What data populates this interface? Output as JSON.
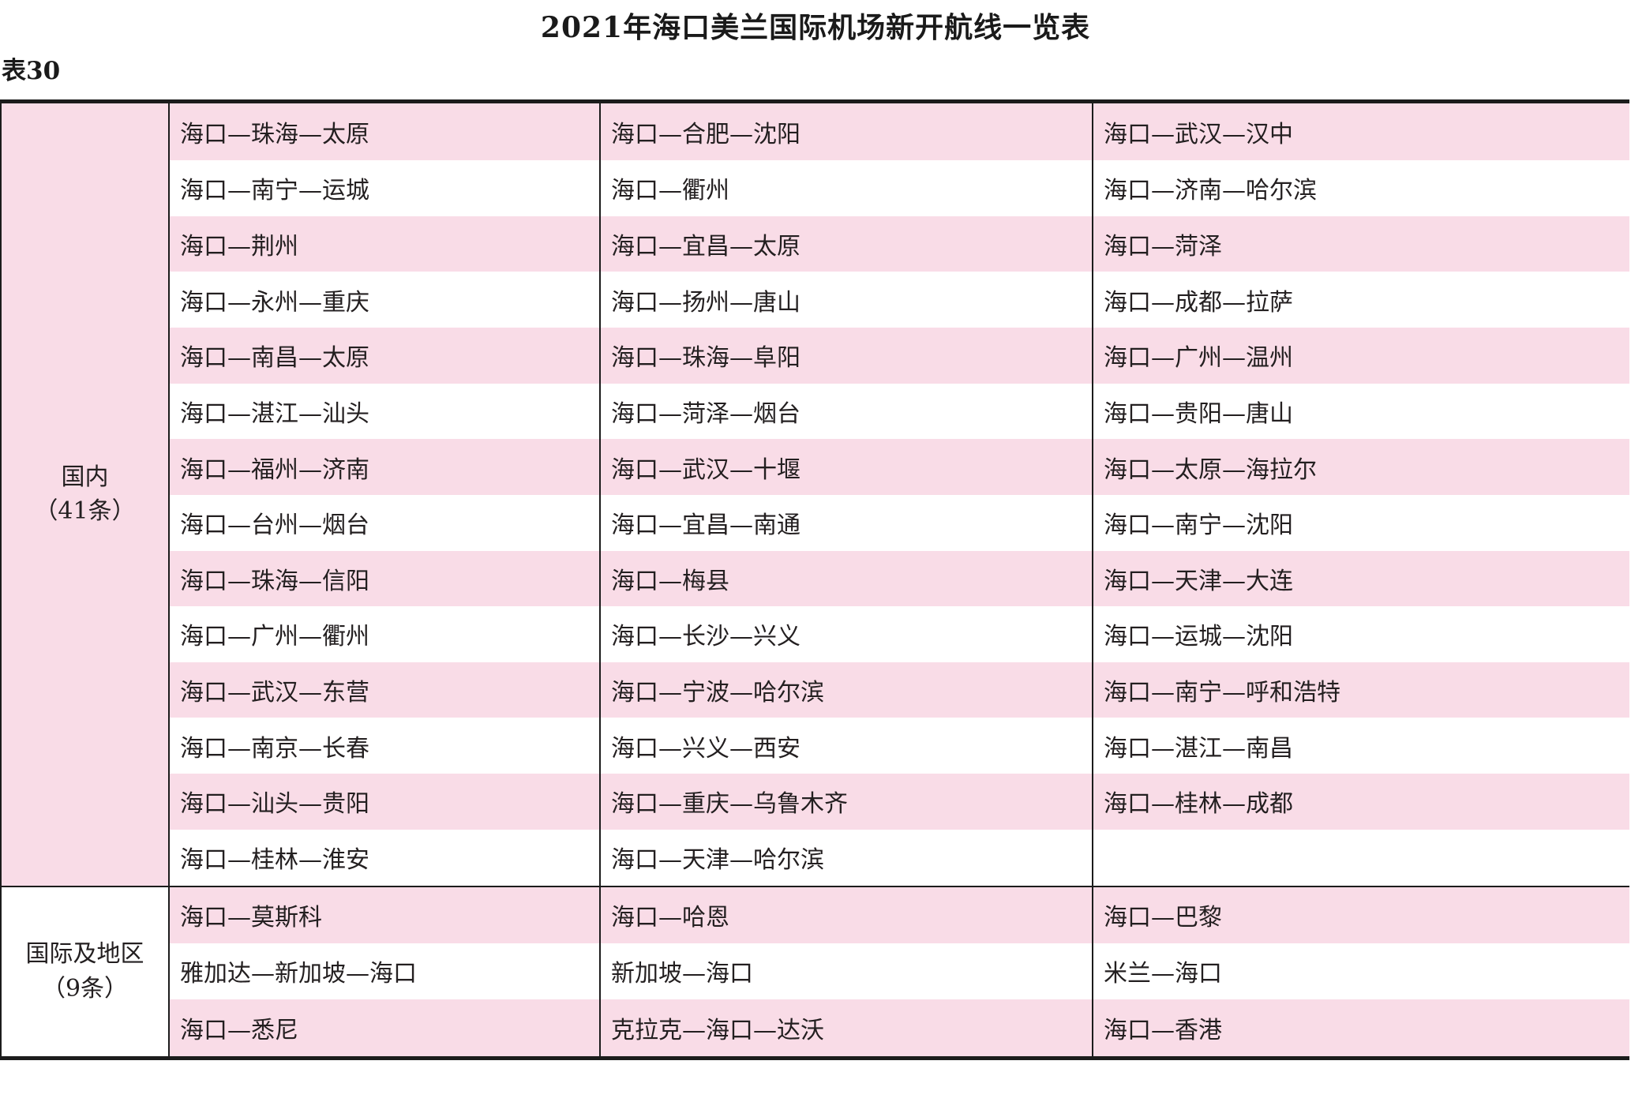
{
  "title": "2021年海口美兰国际机场新开航线一览表",
  "table_label": "表30",
  "colors": {
    "row_pink": "#f9dce7",
    "row_white": "#ffffff",
    "border": "#1c1c1c",
    "text": "#231f20"
  },
  "sections": [
    {
      "name": "国内",
      "count_label": "（41条）",
      "rows": [
        [
          "海口—珠海—太原",
          "海口—合肥—沈阳",
          "海口—武汉—汉中"
        ],
        [
          "海口—南宁—运城",
          "海口—衢州",
          "海口—济南—哈尔滨"
        ],
        [
          "海口—荆州",
          "海口—宜昌—太原",
          "海口—菏泽"
        ],
        [
          "海口—永州—重庆",
          "海口—扬州—唐山",
          "海口—成都—拉萨"
        ],
        [
          "海口—南昌—太原",
          "海口—珠海—阜阳",
          "海口—广州—温州"
        ],
        [
          "海口—湛江—汕头",
          "海口—菏泽—烟台",
          "海口—贵阳—唐山"
        ],
        [
          "海口—福州—济南",
          "海口—武汉—十堰",
          "海口—太原—海拉尔"
        ],
        [
          "海口—台州—烟台",
          "海口—宜昌—南通",
          "海口—南宁—沈阳"
        ],
        [
          "海口—珠海—信阳",
          "海口—梅县",
          "海口—天津—大连"
        ],
        [
          "海口—广州—衢州",
          "海口—长沙—兴义",
          "海口—运城—沈阳"
        ],
        [
          "海口—武汉—东营",
          "海口—宁波—哈尔滨",
          "海口—南宁—呼和浩特"
        ],
        [
          "海口—南京—长春",
          "海口—兴义—西安",
          "海口—湛江—南昌"
        ],
        [
          "海口—汕头—贵阳",
          "海口—重庆—乌鲁木齐",
          "海口—桂林—成都"
        ],
        [
          "海口—桂林—淮安",
          "海口—天津—哈尔滨",
          ""
        ]
      ]
    },
    {
      "name": "国际及地区",
      "count_label": "（9条）",
      "rows": [
        [
          "海口—莫斯科",
          "海口—哈恩",
          "海口—巴黎"
        ],
        [
          "雅加达—新加坡—海口",
          "新加坡—海口",
          "米兰—海口"
        ],
        [
          "海口—悉尼",
          "克拉克—海口—达沃",
          "海口—香港"
        ]
      ]
    }
  ]
}
